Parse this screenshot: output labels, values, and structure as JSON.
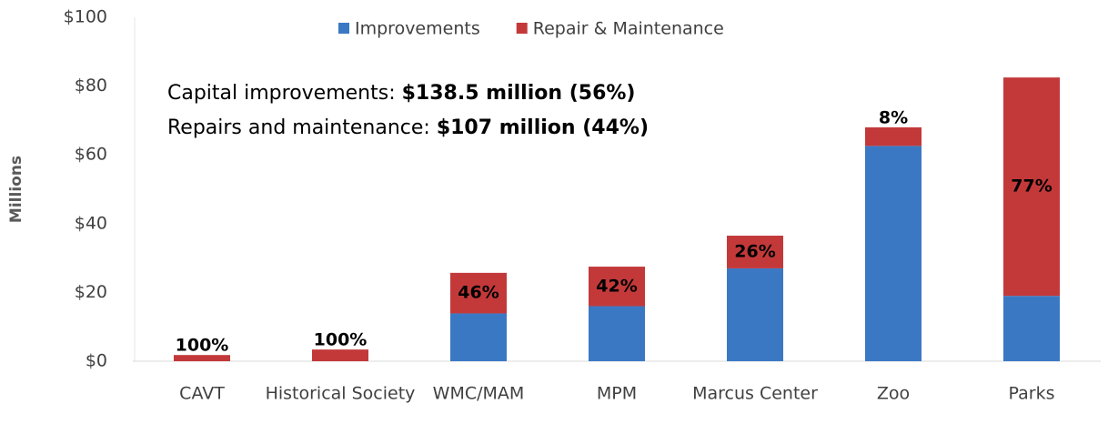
{
  "chart_data": {
    "type": "stacked_bar",
    "y_label": "Millions",
    "categories": [
      "CAVT",
      "Historical Society",
      "WMC/MAM",
      "MPM",
      "Marcus Center",
      "Zoo",
      "Parks"
    ],
    "series": [
      {
        "name": "Improvements",
        "color": "#3b78c4",
        "values": [
          0,
          0,
          13.9,
          16,
          27,
          62.6,
          19
        ]
      },
      {
        "name": "Repair & Maintenance",
        "color": "#c3393a",
        "values": [
          1.8,
          3.4,
          11.8,
          11.5,
          9.5,
          5.4,
          63.5
        ],
        "share_labels": [
          "100%",
          "100%",
          "46%",
          "42%",
          "26%",
          "8%",
          "77%"
        ]
      }
    ],
    "annotations": [
      [
        "Capital improvements: ",
        "$138.5 million (56%)"
      ],
      [
        "Repairs and maintenance: ",
        "$107 million (44%)"
      ]
    ],
    "ylim": [
      0,
      100
    ],
    "yticks": [
      {
        "value": 0,
        "label": "$0"
      },
      {
        "value": 20,
        "label": "$20"
      },
      {
        "value": 40,
        "label": "$40"
      },
      {
        "value": 60,
        "label": "$60"
      },
      {
        "value": 80,
        "label": "$80"
      },
      {
        "value": 100,
        "label": "$100"
      }
    ],
    "legend": "top"
  }
}
